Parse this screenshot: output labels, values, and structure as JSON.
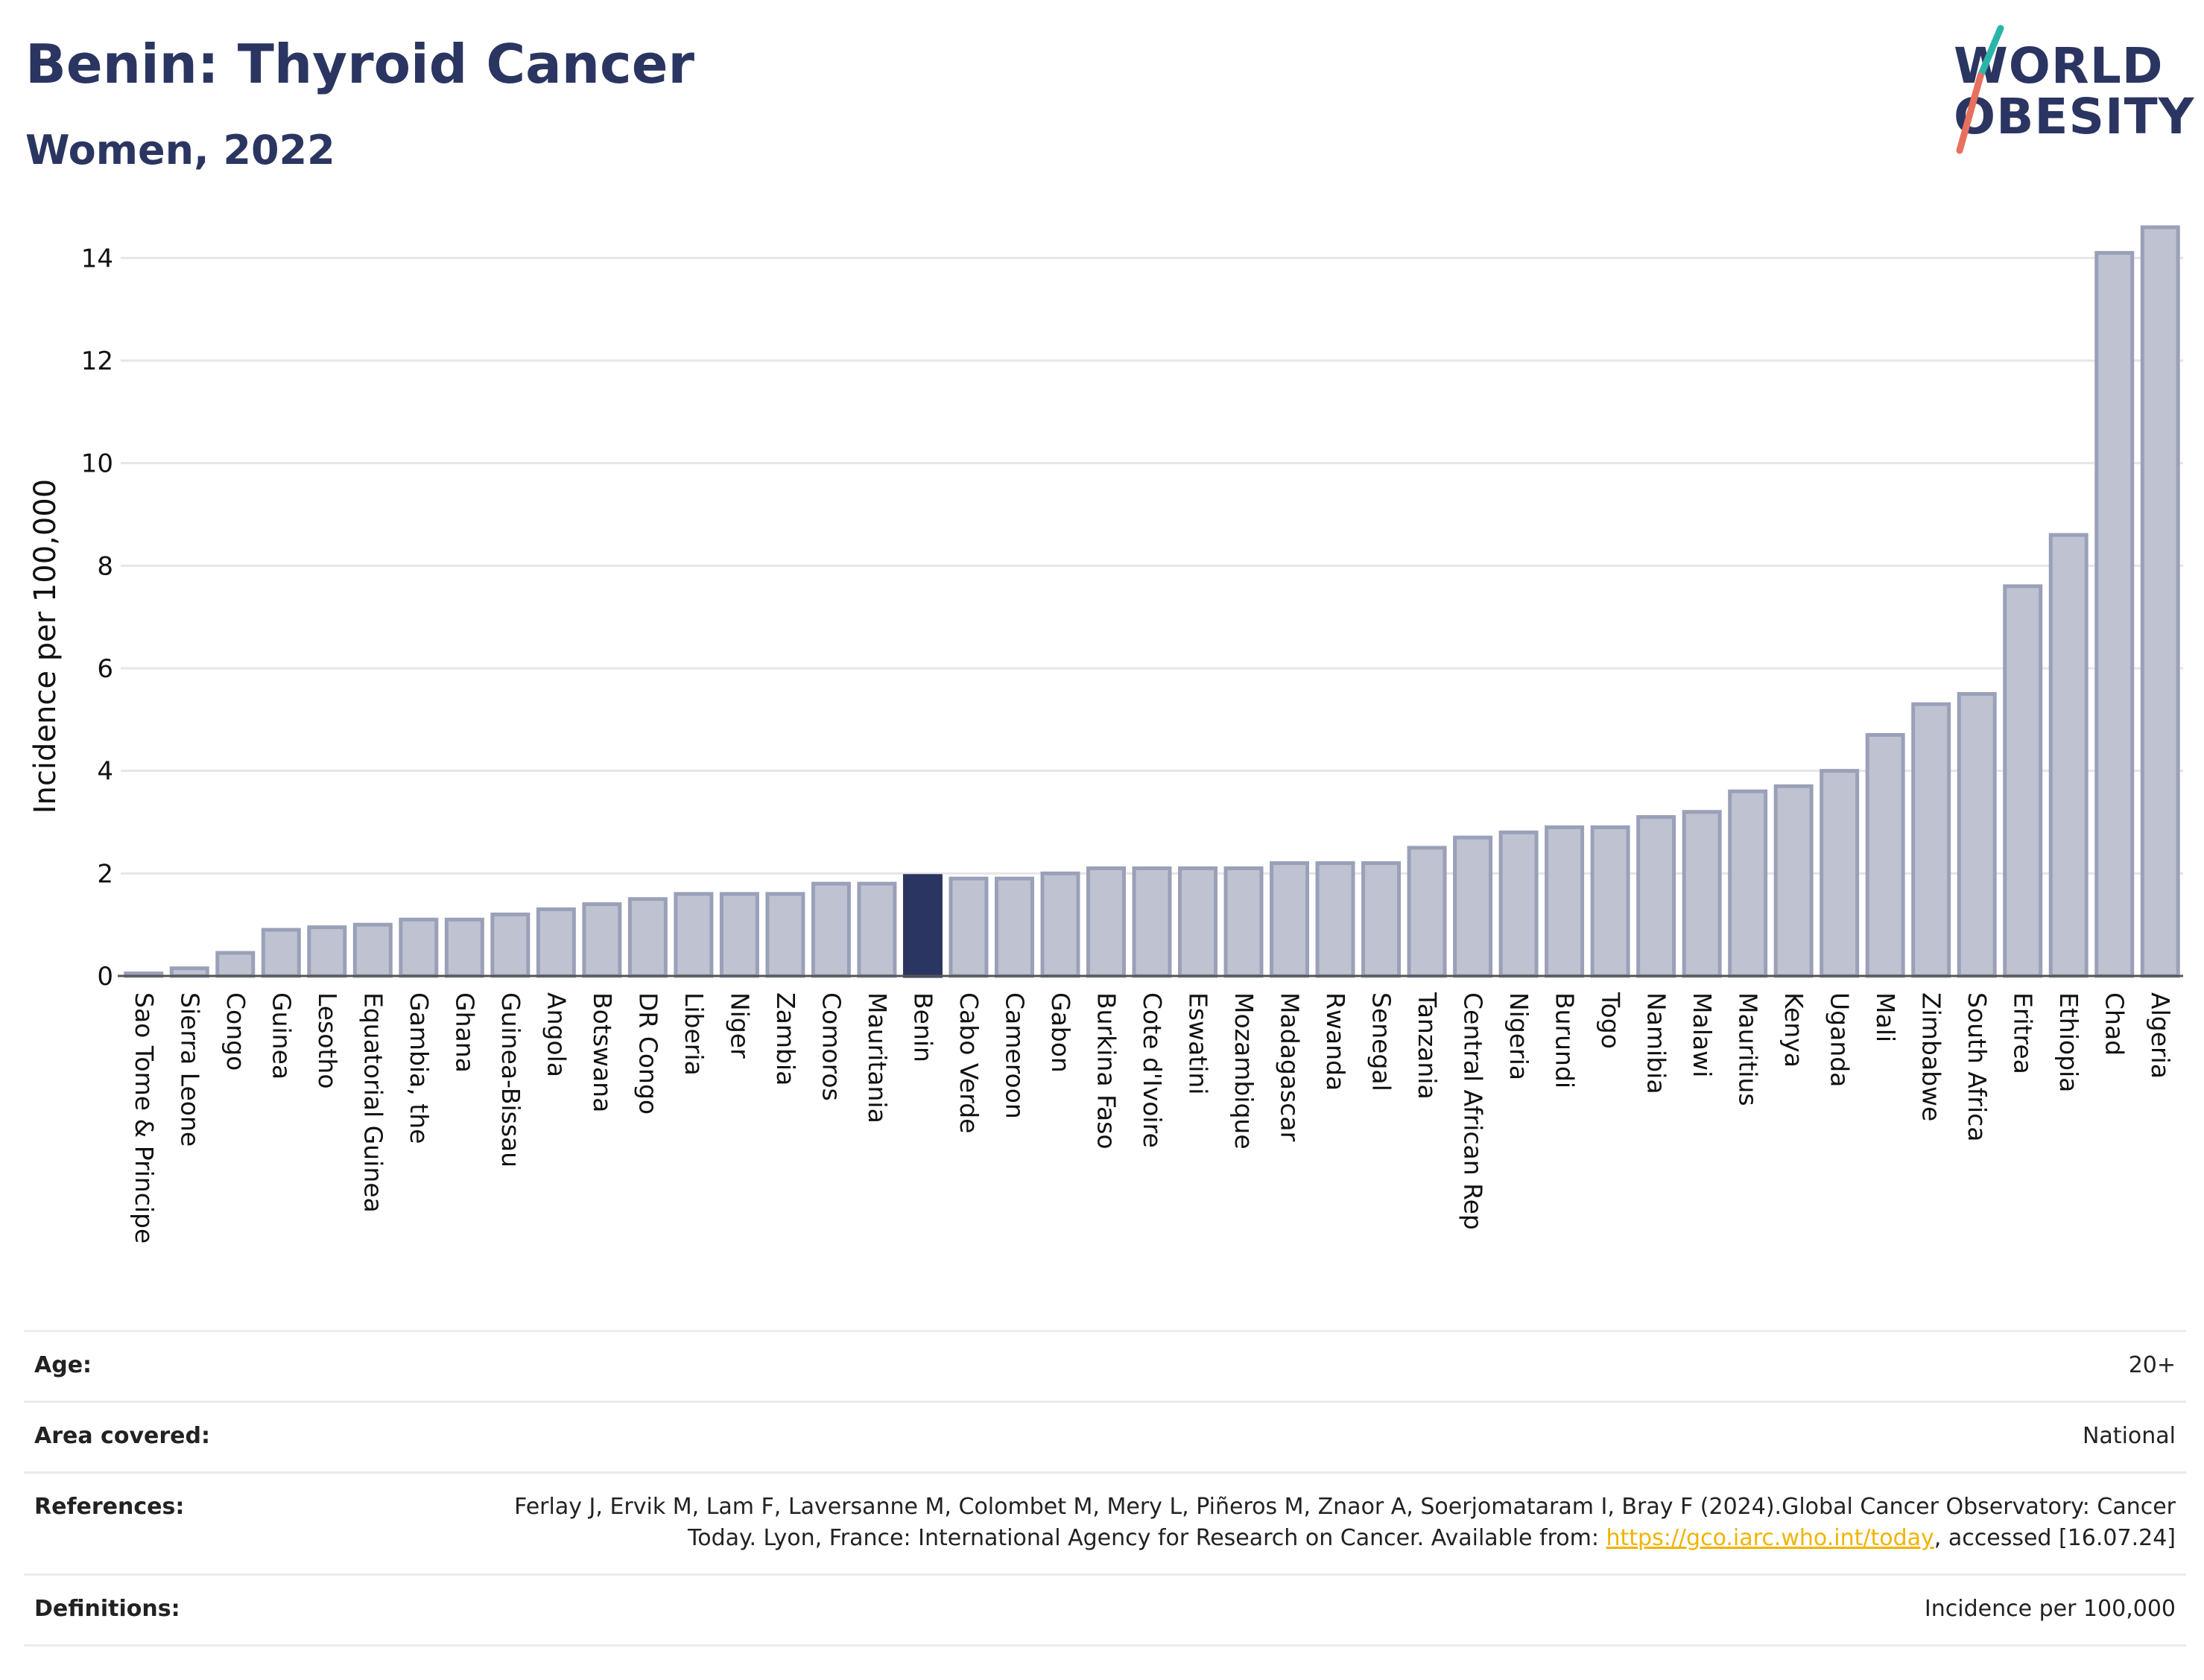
{
  "header": {
    "title": "Benin: Thyroid Cancer",
    "subtitle": "Women, 2022"
  },
  "logo": {
    "line1": "WORLD",
    "line2": "OBESITY"
  },
  "chart_data": {
    "type": "bar",
    "ylabel": "Incidence per 100,000",
    "ylim": [
      0,
      14.6
    ],
    "yticks": [
      0,
      2,
      4,
      6,
      8,
      10,
      12,
      14
    ],
    "grid": true,
    "highlight": "Benin",
    "colors": {
      "highlight": "#2b3561",
      "bar": "#bfc2d0",
      "bar_edge": "#9aa0b8",
      "grid": "#e6e6e6"
    },
    "categories": [
      "Sao Tome & Principe",
      "Sierra Leone",
      "Congo",
      "Guinea",
      "Lesotho",
      "Equatorial Guinea",
      "Gambia, the",
      "Ghana",
      "Guinea-Bissau",
      "Angola",
      "Botswana",
      "DR Congo",
      "Liberia",
      "Niger",
      "Zambia",
      "Comoros",
      "Mauritania",
      "Benin",
      "Cabo Verde",
      "Cameroon",
      "Gabon",
      "Burkina Faso",
      "Cote d'Ivoire",
      "Eswatini",
      "Mozambique",
      "Madagascar",
      "Rwanda",
      "Senegal",
      "Tanzania",
      "Central African Rep",
      "Nigeria",
      "Burundi",
      "Togo",
      "Namibia",
      "Malawi",
      "Mauritius",
      "Kenya",
      "Uganda",
      "Mali",
      "Zimbabwe",
      "South Africa",
      "Eritrea",
      "Ethiopia",
      "Chad",
      "Algeria"
    ],
    "values": [
      0.05,
      0.15,
      0.45,
      0.9,
      0.95,
      1.0,
      1.1,
      1.1,
      1.2,
      1.3,
      1.4,
      1.5,
      1.6,
      1.6,
      1.6,
      1.8,
      1.8,
      1.95,
      1.9,
      1.9,
      2.0,
      2.1,
      2.1,
      2.1,
      2.1,
      2.2,
      2.2,
      2.2,
      2.5,
      2.7,
      2.8,
      2.9,
      2.9,
      3.1,
      3.2,
      3.6,
      3.7,
      4.0,
      4.7,
      5.3,
      5.5,
      7.6,
      8.6,
      14.1,
      14.6
    ]
  },
  "meta": [
    {
      "label": "Age:",
      "value": "20+"
    },
    {
      "label": "Area covered:",
      "value": "National"
    },
    {
      "label": "References:",
      "value_pre": "Ferlay J, Ervik M, Lam F, Laversanne M, Colombet M, Mery L, Piñeros M, Znaor A, Soerjomataram I, Bray F (2024).Global Cancer Observatory: Cancer Today. Lyon, France: International Agency for Research on Cancer. Available from: ",
      "link": "https://gco.iarc.who.int/today",
      "value_post": ", accessed [16.07.24]"
    },
    {
      "label": "Definitions:",
      "value": "Incidence per 100,000"
    }
  ]
}
